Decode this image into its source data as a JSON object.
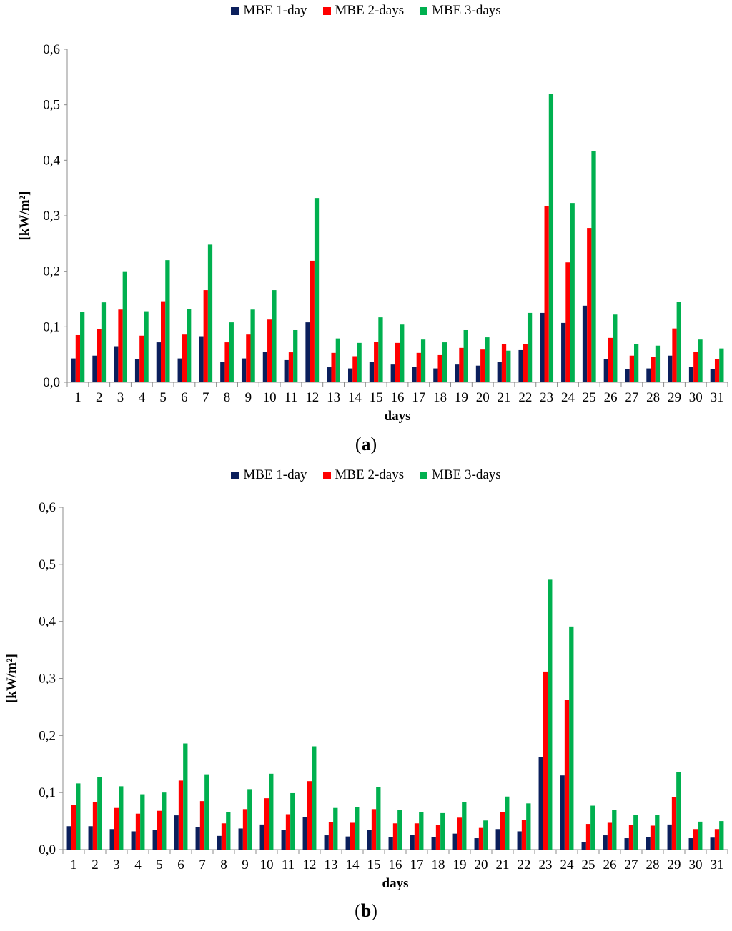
{
  "colors": {
    "mbe1": "#0b1f5c",
    "mbe2": "#ff0000",
    "mbe3": "#00b04f",
    "axis": "#8c8c8c"
  },
  "chart_data": [
    {
      "type": "bar",
      "panel_label": "a",
      "xlabel": "days",
      "ylabel": "[kW/m²]",
      "ylim": [
        0,
        0.6
      ],
      "yticks": [
        "0,0",
        "0,1",
        "0,2",
        "0,3",
        "0,4",
        "0,5",
        "0,6"
      ],
      "grid": false,
      "legend_position": "top-center",
      "categories": [
        "1",
        "2",
        "3",
        "4",
        "5",
        "6",
        "7",
        "8",
        "9",
        "10",
        "11",
        "12",
        "13",
        "14",
        "15",
        "16",
        "17",
        "18",
        "19",
        "20",
        "21",
        "22",
        "23",
        "24",
        "25",
        "26",
        "27",
        "28",
        "29",
        "30",
        "31"
      ],
      "series": [
        {
          "name": "MBE 1-day",
          "color_key": "mbe1",
          "values": [
            0.043,
            0.048,
            0.065,
            0.042,
            0.072,
            0.043,
            0.083,
            0.037,
            0.043,
            0.055,
            0.04,
            0.108,
            0.027,
            0.025,
            0.037,
            0.032,
            0.028,
            0.025,
            0.032,
            0.03,
            0.037,
            0.058,
            0.125,
            0.107,
            0.138,
            0.042,
            0.024,
            0.025,
            0.048,
            0.028,
            0.024
          ]
        },
        {
          "name": "MBE 2-days",
          "color_key": "mbe2",
          "values": [
            0.085,
            0.096,
            0.131,
            0.084,
            0.146,
            0.086,
            0.166,
            0.072,
            0.086,
            0.113,
            0.054,
            0.219,
            0.053,
            0.047,
            0.073,
            0.071,
            0.053,
            0.049,
            0.062,
            0.059,
            0.069,
            0.069,
            0.318,
            0.216,
            0.278,
            0.08,
            0.048,
            0.046,
            0.097,
            0.055,
            0.042
          ]
        },
        {
          "name": "MBE 3-days",
          "color_key": "mbe3",
          "values": [
            0.127,
            0.144,
            0.2,
            0.128,
            0.22,
            0.132,
            0.248,
            0.108,
            0.131,
            0.166,
            0.094,
            0.332,
            0.079,
            0.071,
            0.117,
            0.104,
            0.077,
            0.072,
            0.094,
            0.081,
            0.057,
            0.125,
            0.52,
            0.323,
            0.416,
            0.122,
            0.069,
            0.066,
            0.145,
            0.077,
            0.061
          ]
        }
      ]
    },
    {
      "type": "bar",
      "panel_label": "b",
      "xlabel": "days",
      "ylabel": "[kW/m²]",
      "ylim": [
        0,
        0.6
      ],
      "yticks": [
        "0,0",
        "0,1",
        "0,2",
        "0,3",
        "0,4",
        "0,5",
        "0,6"
      ],
      "grid": false,
      "legend_position": "top-center",
      "categories": [
        "1",
        "2",
        "3",
        "4",
        "5",
        "6",
        "7",
        "8",
        "9",
        "10",
        "11",
        "12",
        "13",
        "14",
        "15",
        "16",
        "17",
        "18",
        "19",
        "20",
        "21",
        "22",
        "23",
        "24",
        "25",
        "26",
        "27",
        "28",
        "29",
        "30",
        "31"
      ],
      "series": [
        {
          "name": "MBE 1-day",
          "color_key": "mbe1",
          "values": [
            0.041,
            0.041,
            0.036,
            0.032,
            0.035,
            0.06,
            0.039,
            0.024,
            0.037,
            0.044,
            0.035,
            0.057,
            0.025,
            0.023,
            0.035,
            0.022,
            0.026,
            0.022,
            0.028,
            0.02,
            0.036,
            0.032,
            0.162,
            0.13,
            0.013,
            0.025,
            0.02,
            0.022,
            0.044,
            0.02,
            0.021
          ]
        },
        {
          "name": "MBE 2-days",
          "color_key": "mbe2",
          "values": [
            0.078,
            0.083,
            0.073,
            0.063,
            0.068,
            0.121,
            0.085,
            0.046,
            0.071,
            0.09,
            0.062,
            0.12,
            0.048,
            0.047,
            0.071,
            0.046,
            0.046,
            0.043,
            0.056,
            0.038,
            0.066,
            0.052,
            0.312,
            0.262,
            0.045,
            0.047,
            0.043,
            0.042,
            0.092,
            0.036,
            0.036
          ]
        },
        {
          "name": "MBE 3-days",
          "color_key": "mbe3",
          "values": [
            0.116,
            0.127,
            0.111,
            0.097,
            0.1,
            0.186,
            0.132,
            0.066,
            0.106,
            0.133,
            0.099,
            0.181,
            0.073,
            0.074,
            0.11,
            0.069,
            0.066,
            0.064,
            0.083,
            0.051,
            0.093,
            0.081,
            0.473,
            0.391,
            0.077,
            0.07,
            0.061,
            0.061,
            0.136,
            0.049,
            0.05
          ]
        }
      ]
    }
  ]
}
